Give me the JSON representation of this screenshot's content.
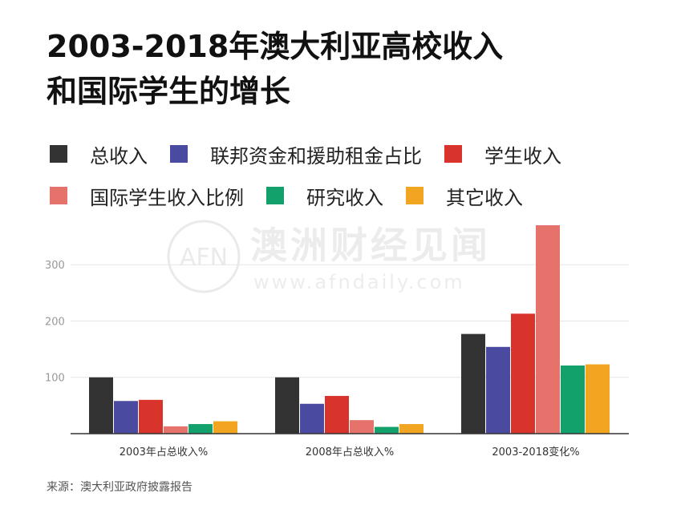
{
  "title_line1": "2003-2018年澳大利亚高校收入",
  "title_line2": "和国际学生的增长",
  "watermark": {
    "logo_text": "AFN",
    "name": "澳洲财经见闻",
    "url": "www.afndaily.com"
  },
  "source": "来源：澳大利亚政府披露报告",
  "chart_data": {
    "type": "bar",
    "categories": [
      "2003年占总收入%",
      "2008年占总收入%",
      "2003-2018变化%"
    ],
    "series": [
      {
        "name": "总收入",
        "color": "#333333",
        "values": [
          100,
          100,
          177
        ]
      },
      {
        "name": "联邦资金和援助租金占比",
        "color": "#4a4ba0",
        "values": [
          58,
          53,
          154
        ]
      },
      {
        "name": "学生收入",
        "color": "#d9342b",
        "values": [
          60,
          67,
          213
        ]
      },
      {
        "name": "国际学生收入比例",
        "color": "#e5736c",
        "values": [
          13,
          24,
          370
        ]
      },
      {
        "name": "研究收入",
        "color": "#12a06b",
        "values": [
          17,
          12,
          121
        ]
      },
      {
        "name": "其它收入",
        "color": "#f2a521",
        "values": [
          22,
          17,
          123
        ]
      }
    ],
    "y_ticks": [
      100,
      200,
      300
    ],
    "ylim": [
      0,
      370
    ],
    "grid": true,
    "legend_position": "top"
  }
}
